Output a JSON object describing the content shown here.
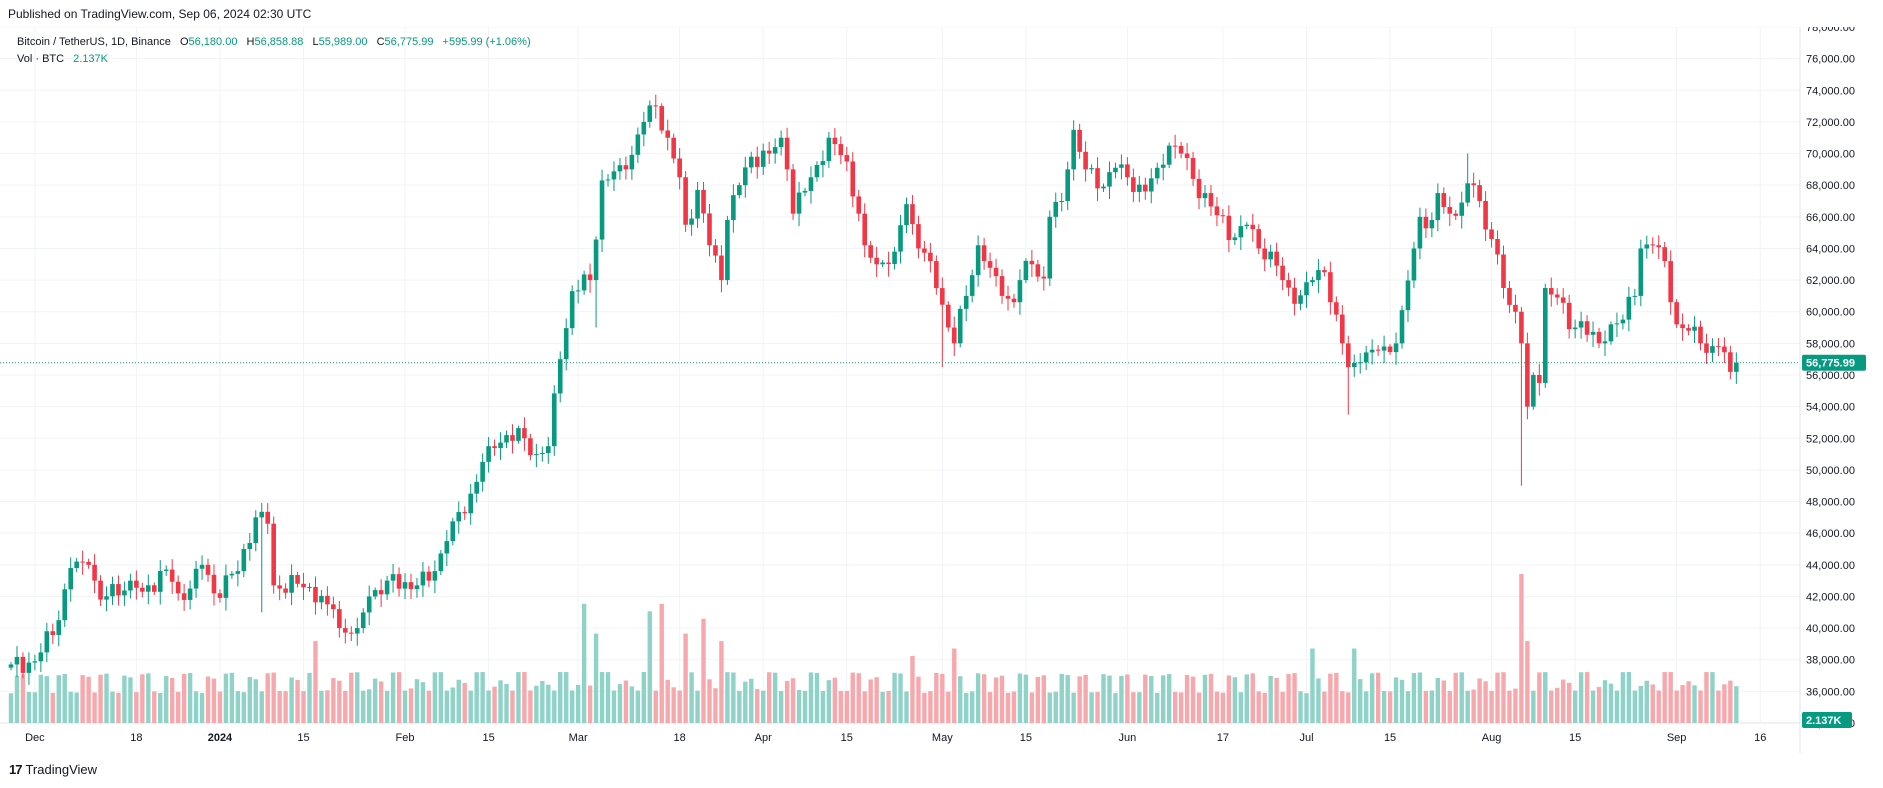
{
  "header": {
    "published": "Published on TradingView.com, Sep 06, 2024 02:30 UTC"
  },
  "legend": {
    "symbol": "Bitcoin / TetherUS, 1D, Binance",
    "o_label": "O",
    "o": "56,180.00",
    "h_label": "H",
    "h": "56,858.88",
    "l_label": "L",
    "l": "55,989.00",
    "c_label": "C",
    "c": "56,775.99",
    "change": "+595.99 (+1.06%)",
    "vol_label": "Vol · BTC",
    "vol_value": "2.137K"
  },
  "footer": {
    "brand": "TradingView",
    "logo": "17"
  },
  "colors": {
    "up": "#089981",
    "down": "#f23645",
    "vol_up": "#8fd3c8",
    "vol_down": "#f7a8ad",
    "grid": "#f0f3fa"
  },
  "chart_data": {
    "type": "candlestick",
    "title": "Bitcoin / TetherUS, 1D, Binance",
    "ylim": [
      34000,
      78000
    ],
    "y_ticks": [
      "78,000.00",
      "76,000.00",
      "74,000.00",
      "72,000.00",
      "70,000.00",
      "68,000.00",
      "66,000.00",
      "64,000.00",
      "62,000.00",
      "60,000.00",
      "58,000.00",
      "56,000.00",
      "54,000.00",
      "52,000.00",
      "50,000.00",
      "48,000.00",
      "46,000.00",
      "44,000.00",
      "42,000.00",
      "40,000.00",
      "38,000.00",
      "36,000.00",
      "34,000.00"
    ],
    "y_tick_values": [
      78000,
      76000,
      74000,
      72000,
      70000,
      68000,
      66000,
      64000,
      62000,
      60000,
      58000,
      56000,
      54000,
      52000,
      50000,
      48000,
      46000,
      44000,
      42000,
      40000,
      38000,
      36000,
      34000
    ],
    "x_ticks": [
      {
        "day": 4,
        "label": "Dec",
        "bold": false
      },
      {
        "day": 21,
        "label": "18",
        "bold": false
      },
      {
        "day": 35,
        "label": "2024",
        "bold": true
      },
      {
        "day": 49,
        "label": "15",
        "bold": false
      },
      {
        "day": 66,
        "label": "Feb",
        "bold": false
      },
      {
        "day": 80,
        "label": "15",
        "bold": false
      },
      {
        "day": 95,
        "label": "Mar",
        "bold": false
      },
      {
        "day": 112,
        "label": "18",
        "bold": false
      },
      {
        "day": 126,
        "label": "Apr",
        "bold": false
      },
      {
        "day": 140,
        "label": "15",
        "bold": false
      },
      {
        "day": 156,
        "label": "May",
        "bold": false
      },
      {
        "day": 170,
        "label": "15",
        "bold": false
      },
      {
        "day": 187,
        "label": "Jun",
        "bold": false
      },
      {
        "day": 203,
        "label": "17",
        "bold": false
      },
      {
        "day": 217,
        "label": "Jul",
        "bold": false
      },
      {
        "day": 231,
        "label": "15",
        "bold": false
      },
      {
        "day": 248,
        "label": "Aug",
        "bold": false
      },
      {
        "day": 262,
        "label": "15",
        "bold": false
      },
      {
        "day": 279,
        "label": "Sep",
        "bold": false
      },
      {
        "day": 293,
        "label": "16",
        "bold": false
      }
    ],
    "last_price": 56775.99,
    "last_price_label": "56,775.99",
    "last_volume_label": "2.137K",
    "anchors": [
      [
        0,
        37700
      ],
      [
        4,
        37900
      ],
      [
        8,
        40500
      ],
      [
        10,
        43800
      ],
      [
        13,
        44000
      ],
      [
        15,
        41800
      ],
      [
        20,
        43000
      ],
      [
        22,
        42300
      ],
      [
        26,
        43700
      ],
      [
        28,
        42200
      ],
      [
        30,
        42500
      ],
      [
        32,
        44000
      ],
      [
        34,
        42200
      ],
      [
        38,
        43600
      ],
      [
        39,
        45000
      ],
      [
        41,
        47000
      ],
      [
        43,
        46600
      ],
      [
        44,
        42700
      ],
      [
        48,
        42800
      ],
      [
        50,
        42600
      ],
      [
        53,
        41500
      ],
      [
        54,
        41200
      ],
      [
        55,
        40000
      ],
      [
        58,
        40000
      ],
      [
        60,
        42000
      ],
      [
        63,
        43000
      ],
      [
        68,
        42700
      ],
      [
        70,
        43000
      ],
      [
        73,
        45500
      ],
      [
        77,
        48500
      ],
      [
        80,
        51500
      ],
      [
        83,
        52200
      ],
      [
        86,
        52000
      ],
      [
        88,
        51000
      ],
      [
        90,
        51500
      ],
      [
        92,
        57000
      ],
      [
        94,
        61300
      ],
      [
        97,
        62000
      ],
      [
        99,
        68300
      ],
      [
        103,
        69000
      ],
      [
        106,
        72000
      ],
      [
        108,
        73000
      ],
      [
        110,
        71000
      ],
      [
        112,
        68500
      ],
      [
        113,
        65500
      ],
      [
        115,
        67700
      ],
      [
        117,
        64200
      ],
      [
        119,
        62000
      ],
      [
        120,
        65800
      ],
      [
        122,
        68000
      ],
      [
        124,
        69800
      ],
      [
        127,
        70000
      ],
      [
        129,
        71000
      ],
      [
        130,
        69000
      ],
      [
        131,
        66200
      ],
      [
        134,
        68500
      ],
      [
        137,
        71000
      ],
      [
        138,
        70600
      ],
      [
        140,
        69500
      ],
      [
        142,
        66200
      ],
      [
        143,
        64200
      ],
      [
        145,
        63000
      ],
      [
        148,
        63800
      ],
      [
        150,
        66800
      ],
      [
        152,
        64000
      ],
      [
        154,
        63200
      ],
      [
        157,
        59000
      ],
      [
        158,
        58000
      ],
      [
        160,
        61000
      ],
      [
        162,
        64200
      ],
      [
        163,
        63200
      ],
      [
        166,
        61000
      ],
      [
        168,
        60600
      ],
      [
        169,
        62000
      ],
      [
        171,
        63000
      ],
      [
        173,
        62100
      ],
      [
        174,
        66000
      ],
      [
        176,
        67000
      ],
      [
        177,
        69000
      ],
      [
        178,
        71500
      ],
      [
        180,
        69000
      ],
      [
        182,
        67800
      ],
      [
        185,
        69100
      ],
      [
        187,
        68500
      ],
      [
        190,
        67600
      ],
      [
        192,
        69100
      ],
      [
        194,
        70500
      ],
      [
        196,
        70000
      ],
      [
        198,
        68400
      ],
      [
        202,
        66100
      ],
      [
        205,
        64700
      ],
      [
        207,
        65500
      ],
      [
        209,
        64000
      ],
      [
        211,
        63800
      ],
      [
        213,
        62000
      ],
      [
        215,
        60500
      ],
      [
        218,
        62000
      ],
      [
        220,
        62500
      ],
      [
        221,
        60600
      ],
      [
        223,
        58000
      ],
      [
        224,
        56500
      ],
      [
        226,
        56800
      ],
      [
        228,
        57600
      ],
      [
        230,
        57800
      ],
      [
        232,
        58000
      ],
      [
        233,
        60100
      ],
      [
        235,
        64000
      ],
      [
        236,
        66000
      ],
      [
        238,
        65800
      ],
      [
        239,
        67500
      ],
      [
        241,
        66200
      ],
      [
        243,
        66900
      ],
      [
        245,
        68000
      ],
      [
        246,
        67000
      ],
      [
        247,
        65200
      ],
      [
        248,
        64600
      ],
      [
        250,
        61500
      ],
      [
        252,
        60000
      ],
      [
        253,
        58000
      ],
      [
        254,
        54000
      ],
      [
        255,
        56000
      ],
      [
        256,
        55500
      ],
      [
        257,
        61500
      ],
      [
        259,
        60900
      ],
      [
        261,
        58900
      ],
      [
        262,
        59000
      ],
      [
        263,
        59400
      ],
      [
        266,
        58000
      ],
      [
        268,
        59200
      ],
      [
        270,
        59500
      ],
      [
        272,
        61000
      ],
      [
        273,
        64000
      ],
      [
        275,
        64200
      ],
      [
        277,
        63200
      ],
      [
        279,
        59200
      ],
      [
        281,
        58800
      ],
      [
        283,
        58000
      ],
      [
        284,
        57400
      ],
      [
        286,
        57800
      ],
      [
        288,
        56200
      ],
      [
        289,
        56776
      ]
    ],
    "volume_note": "relative daily volume bars at chart bottom; largest spike on Aug 5",
    "volume_spikes": [
      [
        51,
        0.55
      ],
      [
        96,
        0.8
      ],
      [
        98,
        0.6
      ],
      [
        107,
        0.75
      ],
      [
        109,
        0.8
      ],
      [
        113,
        0.6
      ],
      [
        116,
        0.7
      ],
      [
        119,
        0.55
      ],
      [
        151,
        0.45
      ],
      [
        158,
        0.5
      ],
      [
        218,
        0.5
      ],
      [
        225,
        0.5
      ],
      [
        253,
        1.0
      ],
      [
        254,
        0.55
      ]
    ]
  }
}
